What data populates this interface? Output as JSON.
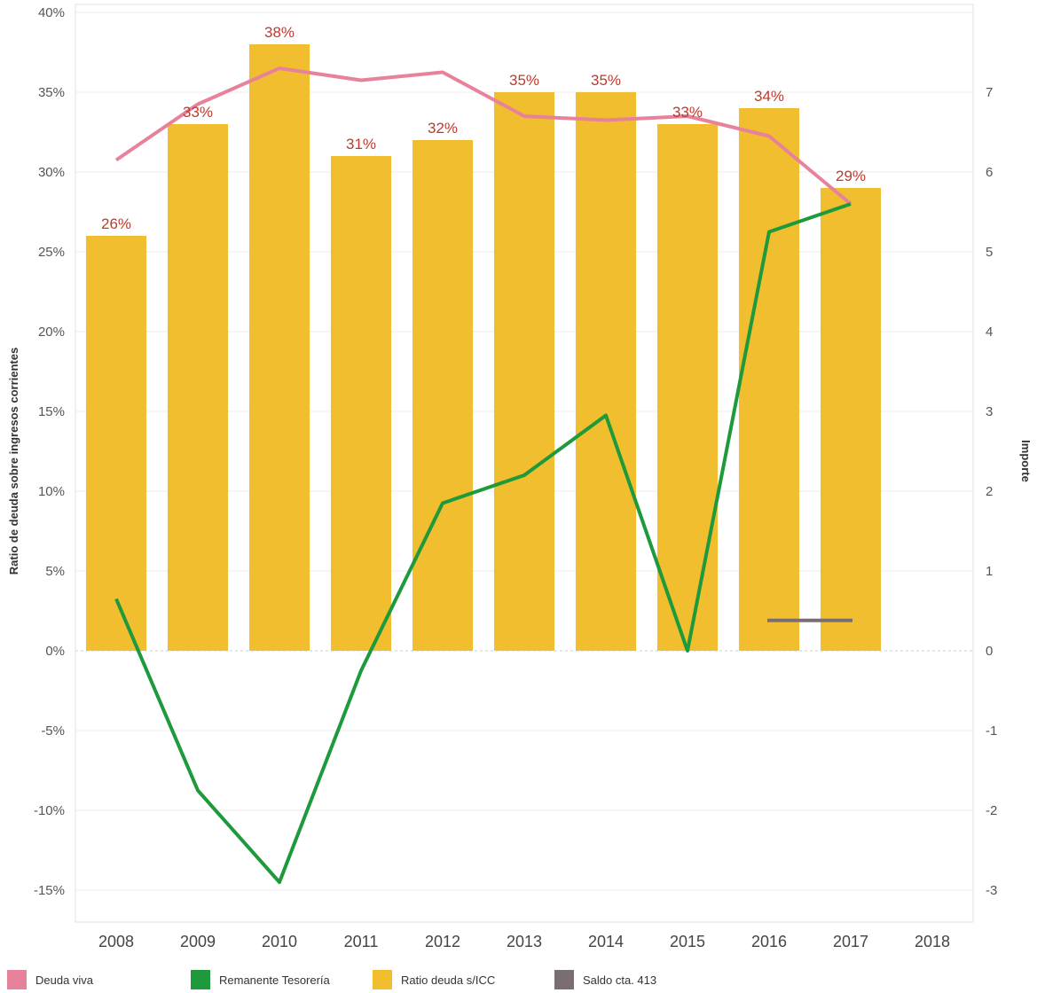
{
  "chart_data": {
    "type": "bar",
    "categories": [
      "2008",
      "2009",
      "2010",
      "2011",
      "2012",
      "2013",
      "2014",
      "2015",
      "2016",
      "2017",
      "2018"
    ],
    "ylabel_left": "Ratio de deuda sobre ingresos corrientes",
    "ylabel_right": "Importe",
    "ylim_left": [
      -0.17,
      0.405
    ],
    "ylim_right": [
      -3.4,
      8.1
    ],
    "yticks_left": [
      {
        "v": 0.4,
        "label": "40%"
      },
      {
        "v": 0.35,
        "label": "35%"
      },
      {
        "v": 0.3,
        "label": "30%"
      },
      {
        "v": 0.25,
        "label": "25%"
      },
      {
        "v": 0.2,
        "label": "20%"
      },
      {
        "v": 0.15,
        "label": "15%"
      },
      {
        "v": 0.1,
        "label": "10%"
      },
      {
        "v": 0.05,
        "label": "5%"
      },
      {
        "v": 0.0,
        "label": "0%"
      },
      {
        "v": -0.05,
        "label": "-5%"
      },
      {
        "v": -0.1,
        "label": "-10%"
      },
      {
        "v": -0.15,
        "label": "-15%"
      }
    ],
    "yticks_right": [
      {
        "v": 7,
        "label": "7"
      },
      {
        "v": 6,
        "label": "6"
      },
      {
        "v": 5,
        "label": "5"
      },
      {
        "v": 4,
        "label": "4"
      },
      {
        "v": 3,
        "label": "3"
      },
      {
        "v": 2,
        "label": "2"
      },
      {
        "v": 1,
        "label": "1"
      },
      {
        "v": 0,
        "label": "0"
      },
      {
        "v": -1,
        "label": "-1"
      },
      {
        "v": -2,
        "label": "-2"
      },
      {
        "v": -3,
        "label": "-3"
      }
    ],
    "bars": {
      "name": "Ratio deuda s/ICC",
      "color": "#F0BE2E",
      "values": [
        0.26,
        0.33,
        0.38,
        0.31,
        0.32,
        0.35,
        0.35,
        0.33,
        0.34,
        0.29,
        null
      ],
      "labels": [
        "26%",
        "33%",
        "38%",
        "31%",
        "32%",
        "35%",
        "35%",
        "33%",
        "34%",
        "29%",
        ""
      ]
    },
    "lines": [
      {
        "name": "Deuda viva",
        "color": "#E8829A",
        "axis": "right",
        "values": [
          6.15,
          6.85,
          7.3,
          7.15,
          7.25,
          6.7,
          6.65,
          6.7,
          6.45,
          5.6,
          null
        ]
      },
      {
        "name": "Remanente Tesorería",
        "color": "#1E9A3C",
        "axis": "right",
        "values": [
          0.65,
          -1.75,
          -2.9,
          -0.25,
          1.85,
          2.2,
          2.95,
          0.0,
          5.25,
          5.6,
          null
        ]
      },
      {
        "name": "Saldo cta. 413",
        "color": "#7A6E72",
        "axis": "right",
        "values": [
          null,
          null,
          null,
          null,
          null,
          null,
          null,
          null,
          0.38,
          0.38,
          null
        ]
      }
    ],
    "legend": [
      "Deuda viva",
      "Remanente Tesorería",
      "Ratio deuda s/ICC",
      "Saldo cta. 413"
    ],
    "legend_position": "bottom",
    "grid": true
  }
}
